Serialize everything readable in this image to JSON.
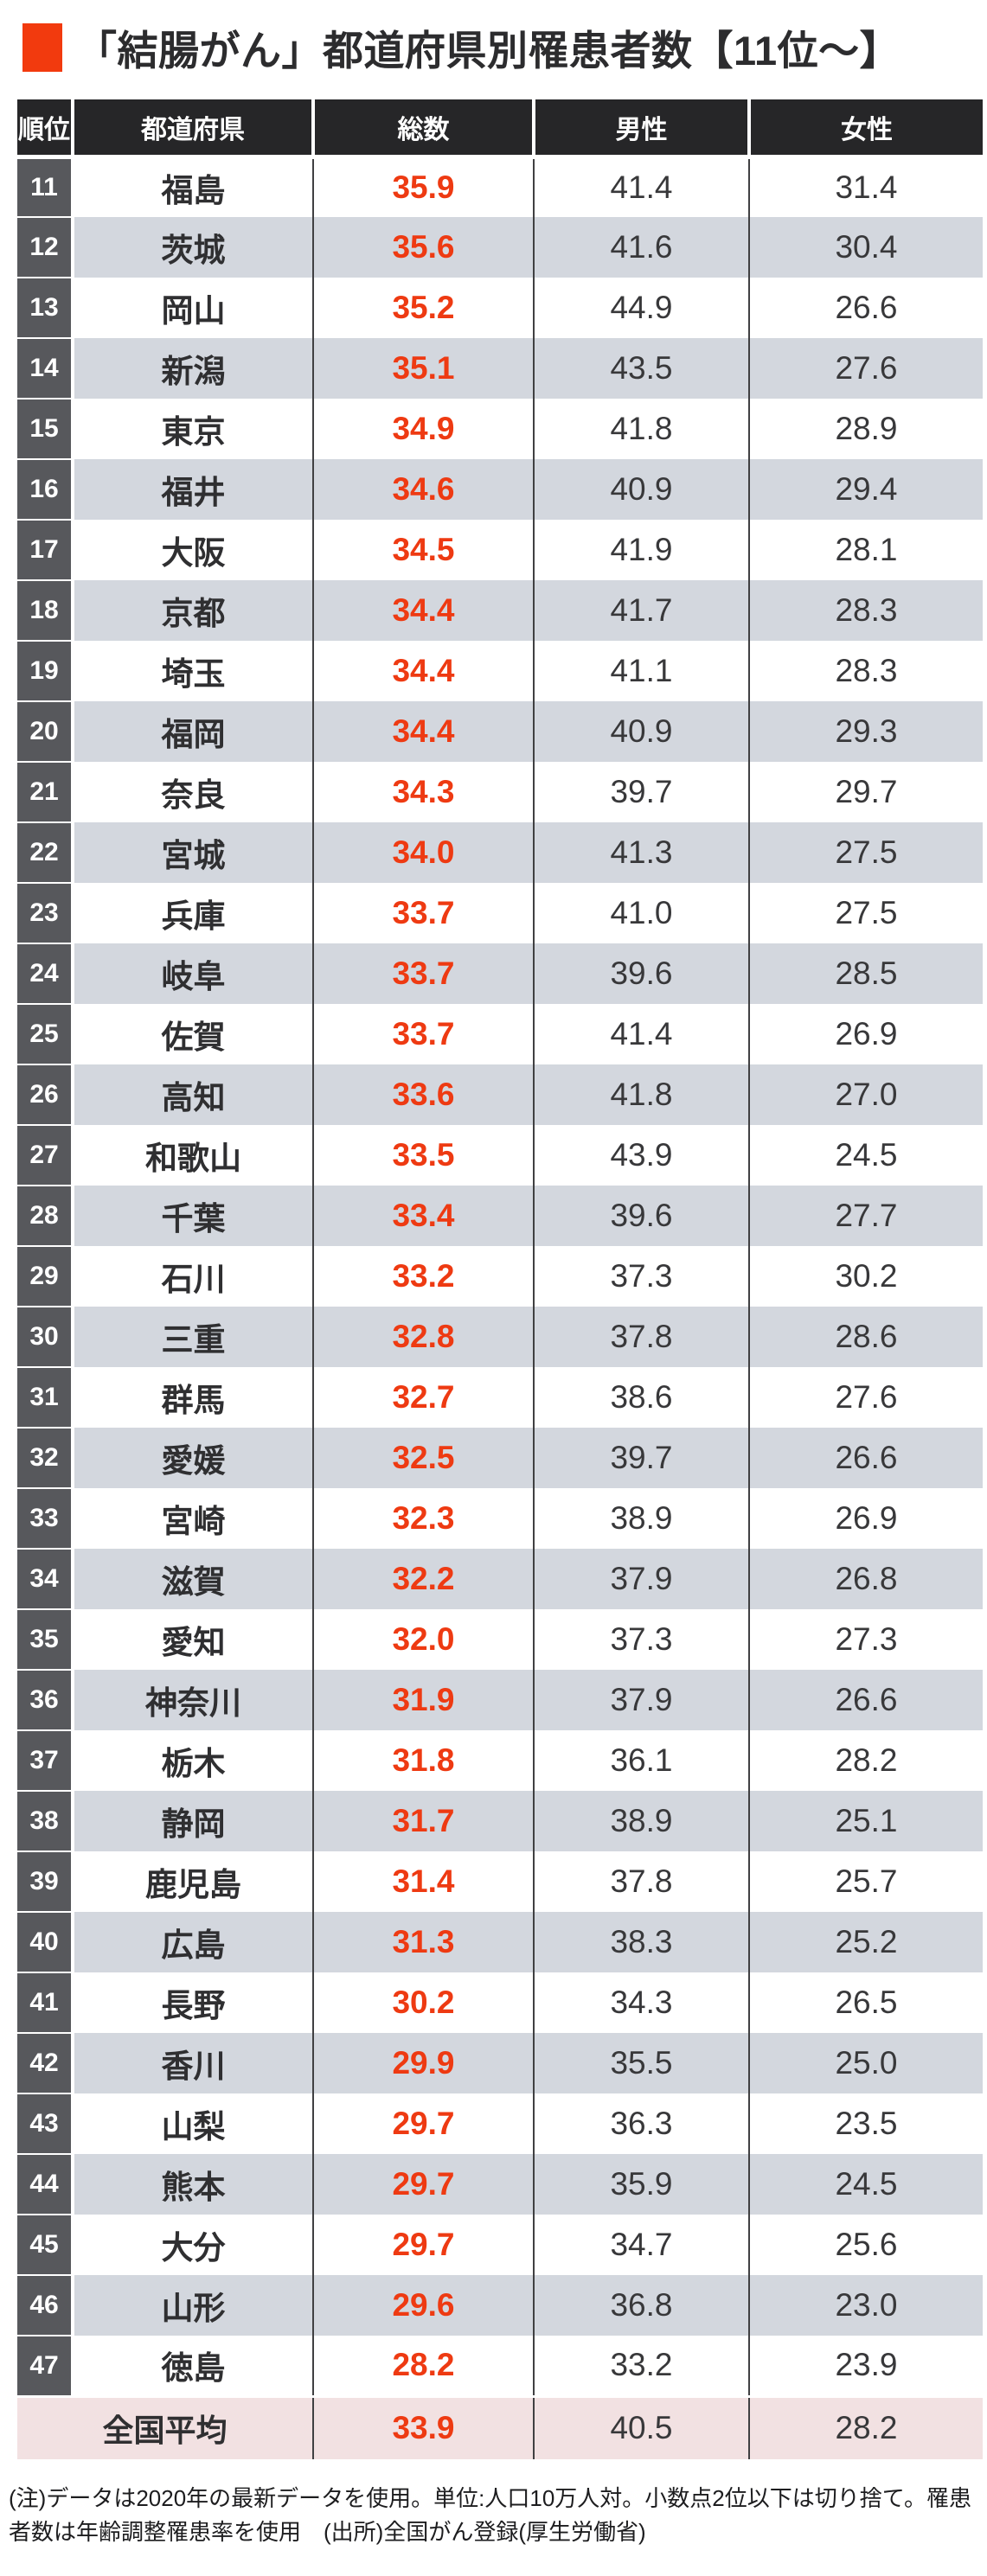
{
  "title": "「結腸がん」都道府県別罹患者数【11位～】",
  "footer_note": "(注)データは2020年の最新データを使用。単位:人口10万人対。小数点2位以下は切り捨て。罹患者数は年齢調整罹患率を使用　(出所)全国がん登録(厚生労働省)",
  "colors": {
    "accent_total": "#ee3a12",
    "title_square": "#f23a0e",
    "header_bg": "#262628",
    "rank_cell_bg": "#57585c",
    "stripe_bg": "#d3d7de",
    "summary_bg": "#f2e1e2",
    "column_divider": "#404042"
  },
  "chart_data": {
    "type": "table",
    "title": "「結腸がん」都道府県別罹患者数【11位～】",
    "columns": [
      "順位",
      "都道府県",
      "総数",
      "男性",
      "女性"
    ],
    "rows": [
      [
        11,
        "福島",
        35.9,
        41.4,
        31.4
      ],
      [
        12,
        "茨城",
        35.6,
        41.6,
        30.4
      ],
      [
        13,
        "岡山",
        35.2,
        44.9,
        26.6
      ],
      [
        14,
        "新潟",
        35.1,
        43.5,
        27.6
      ],
      [
        15,
        "東京",
        34.9,
        41.8,
        28.9
      ],
      [
        16,
        "福井",
        34.6,
        40.9,
        29.4
      ],
      [
        17,
        "大阪",
        34.5,
        41.9,
        28.1
      ],
      [
        18,
        "京都",
        34.4,
        41.7,
        28.3
      ],
      [
        19,
        "埼玉",
        34.4,
        41.1,
        28.3
      ],
      [
        20,
        "福岡",
        34.4,
        40.9,
        29.3
      ],
      [
        21,
        "奈良",
        34.3,
        39.7,
        29.7
      ],
      [
        22,
        "宮城",
        34.0,
        41.3,
        27.5
      ],
      [
        23,
        "兵庫",
        33.7,
        41.0,
        27.5
      ],
      [
        24,
        "岐阜",
        33.7,
        39.6,
        28.5
      ],
      [
        25,
        "佐賀",
        33.7,
        41.4,
        26.9
      ],
      [
        26,
        "高知",
        33.6,
        41.8,
        27.0
      ],
      [
        27,
        "和歌山",
        33.5,
        43.9,
        24.5
      ],
      [
        28,
        "千葉",
        33.4,
        39.6,
        27.7
      ],
      [
        29,
        "石川",
        33.2,
        37.3,
        30.2
      ],
      [
        30,
        "三重",
        32.8,
        37.8,
        28.6
      ],
      [
        31,
        "群馬",
        32.7,
        38.6,
        27.6
      ],
      [
        32,
        "愛媛",
        32.5,
        39.7,
        26.6
      ],
      [
        33,
        "宮崎",
        32.3,
        38.9,
        26.9
      ],
      [
        34,
        "滋賀",
        32.2,
        37.9,
        26.8
      ],
      [
        35,
        "愛知",
        32.0,
        37.3,
        27.3
      ],
      [
        36,
        "神奈川",
        31.9,
        37.9,
        26.6
      ],
      [
        37,
        "栃木",
        31.8,
        36.1,
        28.2
      ],
      [
        38,
        "静岡",
        31.7,
        38.9,
        25.1
      ],
      [
        39,
        "鹿児島",
        31.4,
        37.8,
        25.7
      ],
      [
        40,
        "広島",
        31.3,
        38.3,
        25.2
      ],
      [
        41,
        "長野",
        30.2,
        34.3,
        26.5
      ],
      [
        42,
        "香川",
        29.9,
        35.5,
        25.0
      ],
      [
        43,
        "山梨",
        29.7,
        36.3,
        23.5
      ],
      [
        44,
        "熊本",
        29.7,
        35.9,
        24.5
      ],
      [
        45,
        "大分",
        29.7,
        34.7,
        25.6
      ],
      [
        46,
        "山形",
        29.6,
        36.8,
        23.0
      ],
      [
        47,
        "徳島",
        28.2,
        33.2,
        23.9
      ]
    ],
    "summary_row": [
      "全国平均",
      33.9,
      40.5,
      28.2
    ],
    "layout_hints": {
      "striped_rows": "even ranks shaded blue-gray",
      "total_column_color": "orange-red bold",
      "summary_row_color": "light pink"
    }
  }
}
